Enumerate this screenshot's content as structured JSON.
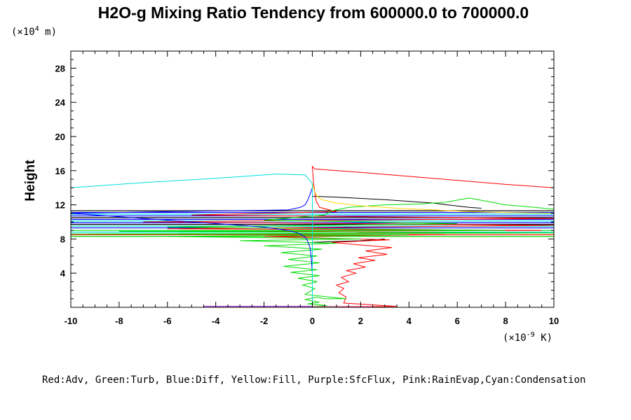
{
  "chart_data": {
    "type": "line",
    "title": "H2O-g Mixing Ratio Tendency from 600000.0 to 700000.0",
    "ylabel": "Height",
    "xlabel": "",
    "x_unit_prefix": "(×10",
    "x_unit_exp": "-9",
    "x_unit_suffix": " K)",
    "y_unit_prefix": "(×10",
    "y_unit_exp": "4",
    "y_unit_suffix": " m)",
    "xlim": [
      -10,
      10
    ],
    "ylim": [
      0,
      30
    ],
    "grid": false,
    "x_ticks": [
      -10,
      -8,
      -6,
      -4,
      -2,
      0,
      2,
      4,
      6,
      8,
      10
    ],
    "y_ticks": [
      4,
      8,
      12,
      16,
      20,
      24,
      28
    ],
    "legend_caption": "Red:Adv, Green:Turb, Blue:Diff, Yellow:Fill, Purple:SfcFlux, Pink:RainEvap,Cyan:Condensation",
    "series": [
      {
        "name": "Adv",
        "color": "#ff0000",
        "points": [
          [
            0.1,
            0.0
          ],
          [
            3.5,
            0.1
          ],
          [
            1.3,
            0.5
          ],
          [
            1.4,
            1.2
          ],
          [
            1.1,
            1.7
          ],
          [
            1.3,
            2.2
          ],
          [
            1.0,
            2.6
          ],
          [
            1.5,
            3.0
          ],
          [
            1.2,
            3.5
          ],
          [
            1.8,
            4.0
          ],
          [
            1.4,
            4.3
          ],
          [
            2.2,
            4.7
          ],
          [
            1.7,
            5.1
          ],
          [
            2.6,
            5.5
          ],
          [
            1.9,
            5.8
          ],
          [
            3.1,
            6.2
          ],
          [
            2.2,
            6.6
          ],
          [
            3.3,
            7.0
          ],
          [
            2.0,
            7.3
          ],
          [
            0.8,
            7.6
          ],
          [
            3.2,
            7.9
          ],
          [
            0.4,
            8.1
          ],
          [
            -2.0,
            8.3
          ],
          [
            5.5,
            8.5
          ],
          [
            -4.0,
            8.6
          ],
          [
            7.0,
            8.7
          ],
          [
            -3.0,
            8.9
          ],
          [
            9.5,
            9.0
          ],
          [
            -6.0,
            9.2
          ],
          [
            10.0,
            9.6
          ],
          [
            -7.0,
            10.0
          ],
          [
            10.0,
            10.4
          ],
          [
            -5.0,
            10.8
          ],
          [
            1.0,
            11.2
          ],
          [
            0.3,
            11.7
          ],
          [
            0.15,
            12.5
          ],
          [
            0.05,
            14.5
          ],
          [
            0.0,
            16.5
          ],
          [
            0.1,
            16.2
          ],
          [
            2.0,
            15.8
          ],
          [
            5.0,
            15.1
          ],
          [
            8.0,
            14.4
          ],
          [
            10.0,
            14.0
          ]
        ]
      },
      {
        "name": "Turb",
        "color": "#00dd00",
        "points": [
          [
            1.4,
            0.0
          ],
          [
            0.0,
            0.1
          ],
          [
            0.6,
            0.2
          ],
          [
            -0.2,
            0.4
          ],
          [
            0.3,
            0.6
          ],
          [
            -0.3,
            0.9
          ],
          [
            0.2,
            1.2
          ],
          [
            0.5,
            1.0
          ],
          [
            1.4,
            1.0
          ],
          [
            -0.3,
            1.5
          ],
          [
            0.1,
            2.2
          ],
          [
            -0.4,
            2.6
          ],
          [
            0.2,
            3.0
          ],
          [
            -0.6,
            3.4
          ],
          [
            0.3,
            3.7
          ],
          [
            -0.9,
            4.1
          ],
          [
            0.2,
            4.4
          ],
          [
            -1.2,
            4.8
          ],
          [
            0.3,
            5.2
          ],
          [
            -1.0,
            5.6
          ],
          [
            0.2,
            6.0
          ],
          [
            -1.3,
            6.4
          ],
          [
            0.4,
            6.8
          ],
          [
            -2.0,
            7.2
          ],
          [
            1.0,
            7.5
          ],
          [
            -3.0,
            7.8
          ],
          [
            2.0,
            8.0
          ],
          [
            -6.0,
            8.3
          ],
          [
            4.0,
            8.5
          ],
          [
            -10.0,
            8.6
          ],
          [
            10.0,
            8.7
          ],
          [
            -8.0,
            8.9
          ],
          [
            8.0,
            9.0
          ],
          [
            -6.0,
            9.4
          ],
          [
            6.0,
            9.8
          ],
          [
            -2.0,
            10.2
          ],
          [
            0.5,
            10.8
          ],
          [
            0.8,
            11.3
          ],
          [
            1.5,
            11.7
          ],
          [
            3.0,
            12.0
          ],
          [
            4.5,
            12.1
          ],
          [
            5.5,
            12.3
          ],
          [
            6.5,
            12.8
          ],
          [
            8.0,
            12.0
          ],
          [
            10.0,
            11.5
          ]
        ]
      },
      {
        "name": "Diff",
        "color": "#0000ff",
        "points": [
          [
            0.0,
            0.0
          ],
          [
            0.0,
            4.0
          ],
          [
            -0.05,
            6.0
          ],
          [
            -0.1,
            7.0
          ],
          [
            -0.2,
            7.8
          ],
          [
            -0.3,
            8.2
          ],
          [
            -0.5,
            8.6
          ],
          [
            -1.0,
            9.0
          ],
          [
            -2.0,
            9.4
          ],
          [
            -4.0,
            9.8
          ],
          [
            -6.0,
            10.2
          ],
          [
            -8.0,
            10.6
          ],
          [
            -10.0,
            11.0
          ],
          [
            -6.0,
            11.2
          ],
          [
            -1.0,
            11.4
          ],
          [
            -0.5,
            11.7
          ],
          [
            -0.3,
            12.0
          ],
          [
            -0.2,
            12.5
          ],
          [
            -0.1,
            13.2
          ],
          [
            0.0,
            14.0
          ]
        ]
      },
      {
        "name": "Fill",
        "color": "#ffd700",
        "points": [
          [
            0.0,
            14.5
          ],
          [
            0.1,
            13.5
          ],
          [
            0.2,
            13.0
          ],
          [
            0.4,
            12.6
          ],
          [
            1.0,
            12.2
          ],
          [
            2.0,
            11.9
          ],
          [
            3.5,
            11.6
          ],
          [
            5.0,
            11.4
          ],
          [
            6.5,
            11.2
          ],
          [
            8.0,
            11.1
          ],
          [
            10.0,
            11.0
          ]
        ]
      },
      {
        "name": "SfcFlux",
        "color": "#9400d3",
        "points": [
          [
            -4.5,
            0.1
          ],
          [
            -2.0,
            0.1
          ],
          [
            -0.5,
            0.1
          ],
          [
            0.0,
            0.1
          ]
        ]
      },
      {
        "name": "RainEvap",
        "color": "#ff69b4",
        "points": [
          [
            0.0,
            0.1
          ],
          [
            1.0,
            0.1
          ],
          [
            2.5,
            0.1
          ]
        ]
      },
      {
        "name": "Condensation",
        "color": "#00dddd",
        "points": [
          [
            0.0,
            0.0
          ],
          [
            0.0,
            5.0
          ],
          [
            0.0,
            10.0
          ],
          [
            0.0,
            14.5
          ],
          [
            -0.3,
            15.5
          ],
          [
            -1.5,
            15.6
          ],
          [
            -4.0,
            15.1
          ],
          [
            -7.0,
            14.6
          ],
          [
            -10.0,
            14.0
          ]
        ]
      }
    ],
    "extra_lines": [
      {
        "color": "#000000",
        "points": [
          [
            0.0,
            13.0
          ],
          [
            1.0,
            12.9
          ],
          [
            3.0,
            12.6
          ],
          [
            5.0,
            12.2
          ],
          [
            6.5,
            11.7
          ],
          [
            7.0,
            11.6
          ]
        ]
      },
      {
        "color": "#000000",
        "points": [
          [
            0.0,
            7.6
          ],
          [
            2.0,
            7.8
          ],
          [
            3.0,
            8.0
          ]
        ]
      }
    ],
    "bands": [
      {
        "y": 8.3,
        "x0": -10,
        "x1": 10,
        "color": "#00dd00"
      },
      {
        "y": 8.5,
        "x0": -10,
        "x1": 10,
        "color": "#ff0000"
      },
      {
        "y": 8.8,
        "x0": -10,
        "x1": 10,
        "color": "#00dddd"
      },
      {
        "y": 9.0,
        "x0": -10,
        "x1": 10,
        "color": "#00dd00"
      },
      {
        "y": 9.3,
        "x0": -10,
        "x1": 10,
        "color": "#0000ff"
      },
      {
        "y": 9.5,
        "x0": -10,
        "x1": 10,
        "color": "#00dddd"
      },
      {
        "y": 9.7,
        "x0": -10,
        "x1": 10,
        "color": "#000000"
      },
      {
        "y": 9.9,
        "x0": -10,
        "x1": 10,
        "color": "#0000ff"
      },
      {
        "y": 10.1,
        "x0": -10,
        "x1": 10,
        "color": "#00dddd"
      },
      {
        "y": 10.3,
        "x0": -10,
        "x1": 10,
        "color": "#0000ff"
      },
      {
        "y": 10.5,
        "x0": -10,
        "x1": 10,
        "color": "#000000"
      },
      {
        "y": 10.7,
        "x0": -10,
        "x1": 10,
        "color": "#0000ff"
      },
      {
        "y": 10.9,
        "x0": -10,
        "x1": 10,
        "color": "#00dddd"
      },
      {
        "y": 11.1,
        "x0": -10,
        "x1": 10,
        "color": "#0000ff"
      },
      {
        "y": 11.3,
        "x0": -10,
        "x1": 10,
        "color": "#000000"
      }
    ]
  }
}
